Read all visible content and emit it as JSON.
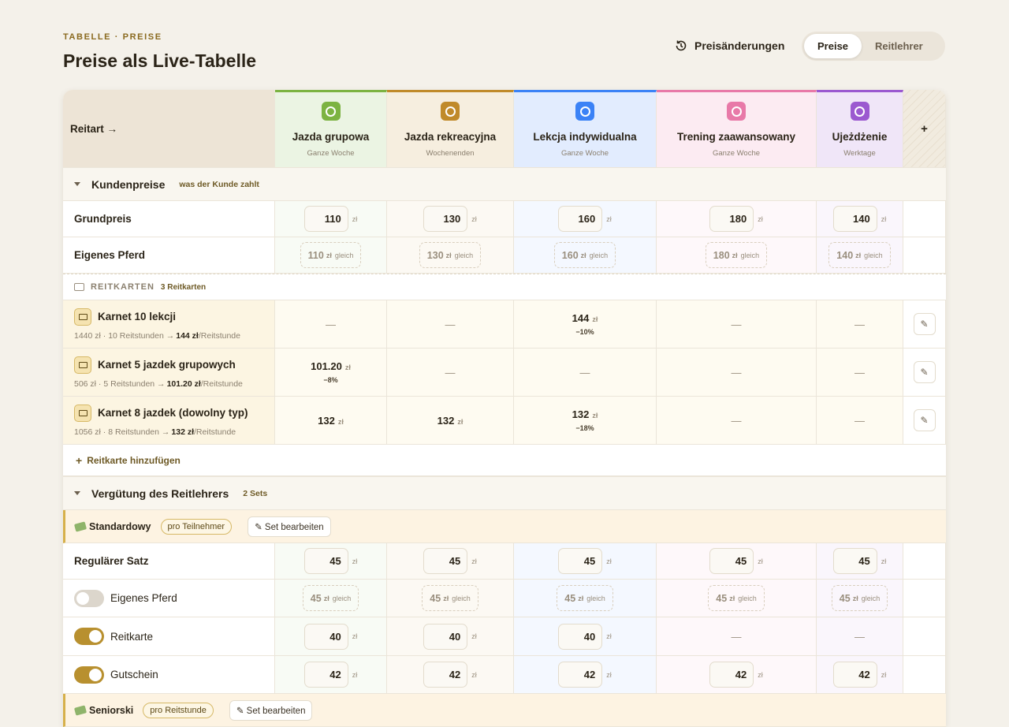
{
  "header": {
    "eyebrow": "TABELLE · PREISE",
    "title": "Preise als Live-Tabelle",
    "history": "Preisänderungen",
    "tabs": [
      "Preise",
      "Reitlehrer"
    ]
  },
  "table": {
    "corner": "Reitart →",
    "add": "+",
    "currency": "zł",
    "same": "gleich",
    "empty": "—",
    "edit": "✎",
    "columns": [
      {
        "name": "Jazda grupowa",
        "schedule": "Ganze Woche",
        "color": "#7cb342"
      },
      {
        "name": "Jazda rekreacyjna",
        "schedule": "Wochenenden",
        "color": "#c08a2a"
      },
      {
        "name": "Lekcja indywidualna",
        "schedule": "Ganze Woche",
        "color": "#3b82f6"
      },
      {
        "name": "Trening zaawansowany",
        "schedule": "Ganze Woche",
        "color": "#e879a8"
      },
      {
        "name": "Ujeżdżenie",
        "schedule": "Werktage",
        "color": "#9b59d0"
      }
    ],
    "customer": {
      "title": "Kundenpreise",
      "note": "was der Kunde zahlt",
      "rows": [
        {
          "label": "Grundpreis",
          "kind": "input",
          "values": [
            110,
            130,
            160,
            180,
            140
          ]
        },
        {
          "label": "Eigenes Pferd",
          "kind": "same",
          "values": [
            110,
            130,
            160,
            180,
            140
          ]
        }
      ]
    },
    "cards": {
      "title": "REITKARTEN",
      "count": "3 Reitkarten",
      "add": "Reitkarte hinzufügen",
      "items": [
        {
          "name": "Karnet 10 lekcji",
          "detail": "1440 zł · 10 Reitstunden →",
          "per": "144 zł",
          "unit": "/Reitstunde",
          "prices": [
            null,
            null,
            144,
            null,
            null
          ],
          "discounts": [
            null,
            null,
            "−10%",
            null,
            null
          ]
        },
        {
          "name": "Karnet 5 jazdek grupowych",
          "detail": "506 zł · 5 Reitstunden →",
          "per": "101.20 zł",
          "unit": "/Reitstunde",
          "prices": [
            "101.20",
            null,
            null,
            null,
            null
          ],
          "discounts": [
            "−8%",
            null,
            null,
            null,
            null
          ]
        },
        {
          "name": "Karnet 8 jazdek (dowolny typ)",
          "detail": "1056 zł · 8 Reitstunden →",
          "per": "132 zł",
          "unit": "/Reitstunde",
          "prices": [
            132,
            132,
            132,
            null,
            null
          ],
          "discounts": [
            null,
            null,
            "−18%",
            null,
            null
          ]
        }
      ]
    },
    "trainer": {
      "title": "Vergütung des Reitlehrers",
      "count": "2 Sets",
      "sets": [
        {
          "name": "Standardowy",
          "mode": "pro Teilnehmer",
          "edit": "✎ Set bearbeiten",
          "rows": [
            {
              "label": "Regulärer Satz",
              "kind": "input",
              "values": [
                45,
                45,
                45,
                45,
                45
              ]
            },
            {
              "label": "Eigenes Pferd",
              "kind": "same",
              "toggle": false,
              "values": [
                45,
                45,
                45,
                45,
                45
              ]
            },
            {
              "label": "Reitkarte",
              "kind": "input",
              "toggle": true,
              "values": [
                40,
                40,
                40,
                null,
                null
              ]
            },
            {
              "label": "Gutschein",
              "kind": "input",
              "toggle": true,
              "values": [
                42,
                42,
                42,
                42,
                42
              ]
            }
          ]
        },
        {
          "name": "Seniorski",
          "mode": "pro Reitstunde",
          "edit": "✎ Set bearbeiten",
          "rows": []
        }
      ]
    }
  }
}
